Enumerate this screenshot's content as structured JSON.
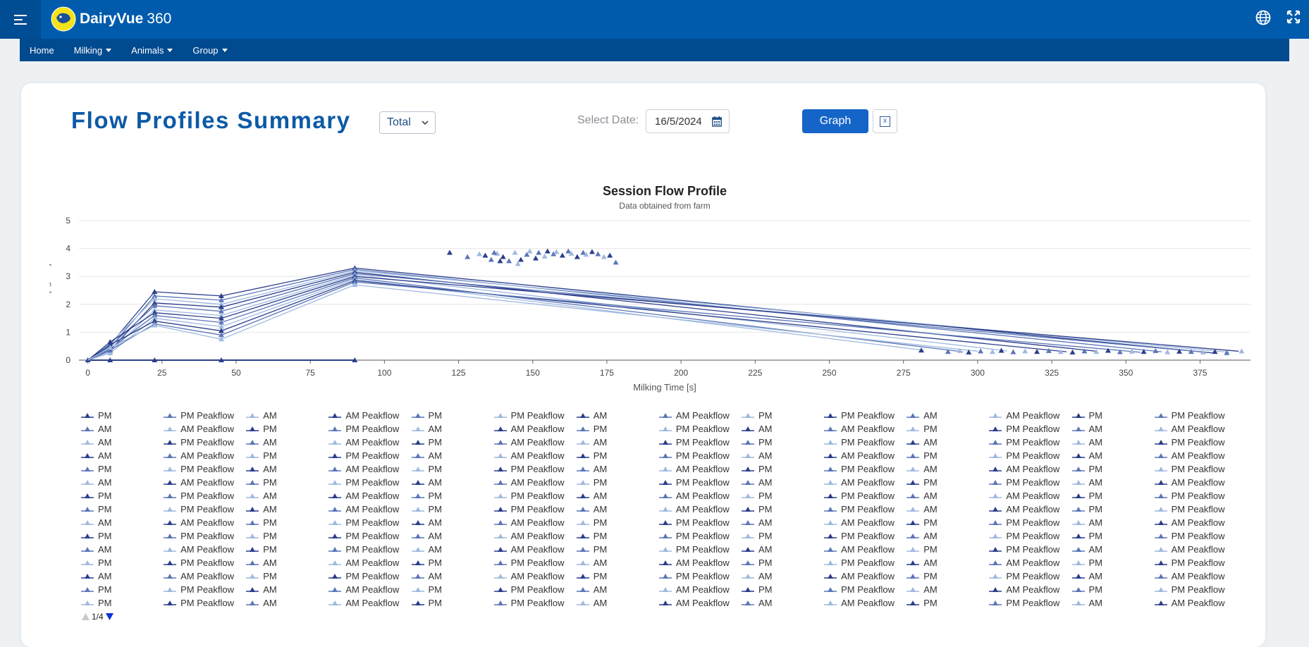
{
  "app": {
    "brand": "DairyVue",
    "brand_num": "360",
    "nav": [
      {
        "label": "Home",
        "dropdown": false
      },
      {
        "label": "Milking",
        "dropdown": true
      },
      {
        "label": "Animals",
        "dropdown": true
      },
      {
        "label": "Group",
        "dropdown": true
      }
    ]
  },
  "page": {
    "title": "Flow Profiles Summary",
    "mode_select": "Total",
    "date_label": "Select Date:",
    "date_value": "16/5/2024",
    "graph_label": "Graph",
    "excel_label": "x"
  },
  "colors": {
    "header": "#005bac",
    "navbar": "#004a8f",
    "series_dark": "#2b3e8a",
    "series_mid": "#5b76b8",
    "series_light": "#9fb9e0"
  },
  "chart_data": {
    "type": "line",
    "title": "Session Flow Profile",
    "subtitle": "Data obtained from farm",
    "xlabel": "Milking Time [s]",
    "ylabel": "Flow Rate [kg/min]",
    "xlim": [
      -3,
      392
    ],
    "ylim": [
      0,
      5
    ],
    "xticks": [
      0,
      25,
      50,
      75,
      100,
      125,
      150,
      175,
      200,
      225,
      250,
      275,
      300,
      325,
      350,
      375
    ],
    "yticks": [
      0,
      1,
      2,
      3,
      4,
      5
    ],
    "grid": "horizontal",
    "legend_position": "bottom",
    "profile_x": [
      0,
      7.5,
      22.5,
      45,
      90
    ],
    "series": [
      {
        "name": "PM",
        "y": [
          0,
          0.55,
          2.45,
          2.3,
          3.3
        ],
        "end": [
          380,
          0.25
        ]
      },
      {
        "name": "AM",
        "y": [
          0,
          0.45,
          2.3,
          2.15,
          3.25
        ],
        "end": [
          362,
          0.3
        ]
      },
      {
        "name": "PM",
        "y": [
          0,
          0.6,
          2.2,
          2.0,
          3.2
        ],
        "end": [
          385,
          0.28
        ]
      },
      {
        "name": "AM",
        "y": [
          0,
          0.35,
          2.05,
          1.9,
          3.15
        ],
        "end": [
          340,
          0.32
        ]
      },
      {
        "name": "PM",
        "y": [
          0,
          0.5,
          1.95,
          1.75,
          3.1
        ],
        "end": [
          375,
          0.3
        ]
      },
      {
        "name": "AM",
        "y": [
          0,
          0.3,
          1.8,
          1.6,
          3.05
        ],
        "end": [
          310,
          0.33
        ]
      },
      {
        "name": "PM",
        "y": [
          0,
          0.65,
          1.7,
          1.5,
          3.0
        ],
        "end": [
          388,
          0.32
        ]
      },
      {
        "name": "AM",
        "y": [
          0,
          0.4,
          1.6,
          1.35,
          2.95
        ],
        "end": [
          295,
          0.3
        ]
      },
      {
        "name": "PM",
        "y": [
          0,
          0.25,
          1.5,
          1.2,
          2.9
        ],
        "end": [
          282,
          0.35
        ]
      },
      {
        "name": "AM",
        "y": [
          0,
          0.55,
          1.4,
          1.05,
          2.85
        ],
        "end": [
          330,
          0.3
        ]
      },
      {
        "name": "PM",
        "y": [
          0,
          0.35,
          1.3,
          0.9,
          2.8
        ],
        "end": [
          355,
          0.28
        ]
      },
      {
        "name": "AM",
        "y": [
          0,
          0.45,
          1.25,
          0.75,
          2.7
        ],
        "end": [
          300,
          0.32
        ]
      }
    ],
    "zero_markers_x": [
      0,
      7.5,
      22.5,
      45,
      90
    ],
    "peakflow_points": [
      [
        122,
        3.85
      ],
      [
        128,
        3.7
      ],
      [
        132,
        3.8
      ],
      [
        134,
        3.75
      ],
      [
        136,
        3.6
      ],
      [
        138,
        3.82
      ],
      [
        140,
        3.7
      ],
      [
        142,
        3.55
      ],
      [
        144,
        3.85
      ],
      [
        146,
        3.6
      ],
      [
        148,
        3.78
      ],
      [
        149,
        3.9
      ],
      [
        151,
        3.65
      ],
      [
        152,
        3.85
      ],
      [
        154,
        3.72
      ],
      [
        155,
        3.9
      ],
      [
        157,
        3.8
      ],
      [
        158,
        3.88
      ],
      [
        160,
        3.75
      ],
      [
        162,
        3.9
      ],
      [
        163,
        3.82
      ],
      [
        165,
        3.7
      ],
      [
        167,
        3.85
      ],
      [
        168,
        3.78
      ],
      [
        170,
        3.88
      ],
      [
        172,
        3.8
      ],
      [
        174,
        3.7
      ],
      [
        176,
        3.75
      ],
      [
        178,
        3.5
      ],
      [
        145,
        3.45
      ],
      [
        139,
        3.55
      ],
      [
        137,
        3.85
      ]
    ],
    "end_points": [
      [
        281,
        0.35
      ],
      [
        290,
        0.3
      ],
      [
        294,
        0.33
      ],
      [
        297,
        0.28
      ],
      [
        301,
        0.32
      ],
      [
        305,
        0.3
      ],
      [
        308,
        0.34
      ],
      [
        312,
        0.29
      ],
      [
        316,
        0.32
      ],
      [
        320,
        0.3
      ],
      [
        324,
        0.33
      ],
      [
        328,
        0.3
      ],
      [
        332,
        0.28
      ],
      [
        336,
        0.32
      ],
      [
        340,
        0.3
      ],
      [
        344,
        0.34
      ],
      [
        348,
        0.29
      ],
      [
        352,
        0.31
      ],
      [
        356,
        0.3
      ],
      [
        360,
        0.33
      ],
      [
        364,
        0.29
      ],
      [
        368,
        0.31
      ],
      [
        372,
        0.3
      ],
      [
        376,
        0.28
      ],
      [
        380,
        0.3
      ],
      [
        384,
        0.26
      ],
      [
        389,
        0.32
      ]
    ],
    "legend": {
      "columns": 14,
      "rows": [
        [
          "PM",
          "PM Peakflow",
          "AM",
          "AM Peakflow",
          "PM",
          "PM Peakflow",
          "AM",
          "AM Peakflow",
          "PM",
          "PM Peakflow",
          "AM",
          "AM Peakflow",
          "PM",
          "PM Peakflow"
        ],
        [
          "AM",
          "AM Peakflow",
          "PM",
          "PM Peakflow",
          "AM",
          "AM Peakflow",
          "PM",
          "PM Peakflow",
          "AM",
          "AM Peakflow",
          "PM",
          "PM Peakflow",
          "AM",
          "AM Peakflow"
        ],
        [
          "AM",
          "PM Peakflow",
          "AM",
          "AM Peakflow",
          "PM",
          "AM Peakflow",
          "AM",
          "PM Peakflow",
          "PM",
          "PM Peakflow",
          "AM",
          "PM Peakflow",
          "AM",
          "PM Peakflow"
        ],
        [
          "AM",
          "AM Peakflow",
          "PM",
          "PM Peakflow",
          "AM",
          "AM Peakflow",
          "PM",
          "PM Peakflow",
          "AM",
          "AM Peakflow",
          "PM",
          "PM Peakflow",
          "AM",
          "AM Peakflow"
        ],
        [
          "PM",
          "PM Peakflow",
          "AM",
          "AM Peakflow",
          "PM",
          "PM Peakflow",
          "AM",
          "AM Peakflow",
          "PM",
          "PM Peakflow",
          "AM",
          "AM Peakflow",
          "PM",
          "PM Peakflow"
        ],
        [
          "AM",
          "AM Peakflow",
          "PM",
          "PM Peakflow",
          "AM",
          "AM Peakflow",
          "PM",
          "PM Peakflow",
          "AM",
          "AM Peakflow",
          "PM",
          "PM Peakflow",
          "AM",
          "AM Peakflow"
        ],
        [
          "PM",
          "PM Peakflow",
          "AM",
          "AM Peakflow",
          "PM",
          "PM Peakflow",
          "AM",
          "AM Peakflow",
          "PM",
          "PM Peakflow",
          "AM",
          "AM Peakflow",
          "PM",
          "PM Peakflow"
        ],
        [
          "PM",
          "PM Peakflow",
          "AM",
          "AM Peakflow",
          "PM",
          "PM Peakflow",
          "AM",
          "AM Peakflow",
          "PM",
          "PM Peakflow",
          "AM",
          "AM Peakflow",
          "PM",
          "PM Peakflow"
        ],
        [
          "AM",
          "AM Peakflow",
          "PM",
          "PM Peakflow",
          "AM",
          "AM Peakflow",
          "PM",
          "PM Peakflow",
          "AM",
          "AM Peakflow",
          "PM",
          "PM Peakflow",
          "AM",
          "AM Peakflow"
        ],
        [
          "PM",
          "PM Peakflow",
          "PM",
          "PM Peakflow",
          "AM",
          "AM Peakflow",
          "PM",
          "PM Peakflow",
          "PM",
          "PM Peakflow",
          "AM",
          "PM Peakflow",
          "PM",
          "PM Peakflow"
        ],
        [
          "AM",
          "AM Peakflow",
          "PM",
          "PM Peakflow",
          "AM",
          "AM Peakflow",
          "PM",
          "PM Peakflow",
          "AM",
          "AM Peakflow",
          "PM",
          "PM Peakflow",
          "AM",
          "AM Peakflow"
        ],
        [
          "PM",
          "PM Peakflow",
          "AM",
          "AM Peakflow",
          "PM",
          "PM Peakflow",
          "AM",
          "AM Peakflow",
          "PM",
          "PM Peakflow",
          "AM",
          "AM Peakflow",
          "PM",
          "PM Peakflow"
        ],
        [
          "AM",
          "AM Peakflow",
          "PM",
          "PM Peakflow",
          "AM",
          "AM Peakflow",
          "PM",
          "PM Peakflow",
          "AM",
          "AM Peakflow",
          "PM",
          "PM Peakflow",
          "AM",
          "AM Peakflow"
        ],
        [
          "PM",
          "PM Peakflow",
          "AM",
          "AM Peakflow",
          "PM",
          "PM Peakflow",
          "AM",
          "AM Peakflow",
          "PM",
          "PM Peakflow",
          "AM",
          "AM Peakflow",
          "PM",
          "PM Peakflow"
        ],
        [
          "PM",
          "PM Peakflow",
          "AM",
          "AM Peakflow",
          "PM",
          "PM Peakflow",
          "AM",
          "AM Peakflow",
          "AM",
          "AM Peakflow",
          "PM",
          "PM Peakflow",
          "AM",
          "AM Peakflow"
        ]
      ]
    },
    "legend_page": "1/4"
  }
}
